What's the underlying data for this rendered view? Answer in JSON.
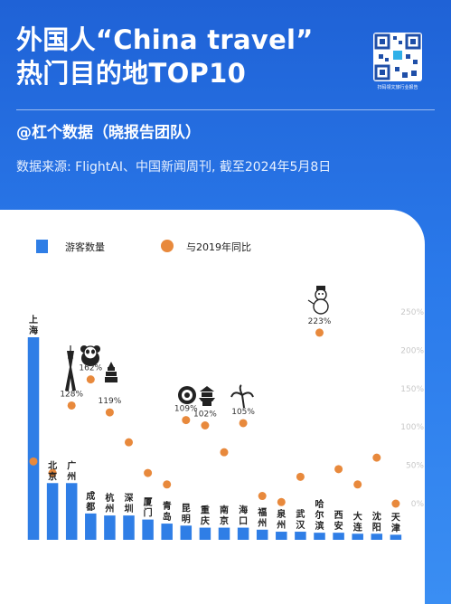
{
  "header": {
    "title_line1": "外国人“China travel”",
    "title_line2": "热门目的地TOP10",
    "author": "@杠个数据（晓报告团队）",
    "source": "数据来源: FlightAI、中国新闻周刊, 截至2024年5月8日",
    "qr_caption": "扫码领文旅行业报告"
  },
  "colors": {
    "background": "#2a79ea",
    "bar": "#2f7ee6",
    "dot": "#e8893c",
    "text": "#222222",
    "axis_text": "#c8c8c8"
  },
  "chart_data": {
    "type": "bar",
    "legend": {
      "bar_label": "游客数量",
      "dot_label": "与2019年同比",
      "placement": "top-left"
    },
    "y_right_ticks": [
      "250%",
      "200%",
      "150%",
      "100%",
      "50%",
      "0%"
    ],
    "y_right_range": [
      0,
      250
    ],
    "visitor_range": [
      0,
      100
    ],
    "categories": [
      "上海",
      "北京",
      "广州",
      "成都",
      "杭州",
      "深圳",
      "厦门",
      "青岛",
      "昆明",
      "重庆",
      "南京",
      "海口",
      "福州",
      "泉州",
      "武汉",
      "哈尔滨",
      "西安",
      "大连",
      "沈阳",
      "天津"
    ],
    "visitors": [
      100,
      28,
      28,
      13,
      12,
      12,
      10,
      8,
      7,
      6,
      6,
      6,
      5,
      4,
      4,
      3.5,
      3.5,
      3,
      3,
      2.5
    ],
    "yoy_percent": [
      55,
      40,
      128,
      162,
      119,
      80,
      40,
      25,
      109,
      102,
      67,
      105,
      10,
      2,
      35,
      223,
      45,
      25,
      60,
      0
    ],
    "labeled_points": [
      {
        "city": "广州",
        "label": "128%"
      },
      {
        "city": "成都",
        "label": "162%"
      },
      {
        "city": "杭州",
        "label": "119%"
      },
      {
        "city": "昆明",
        "label": "109%"
      },
      {
        "city": "重庆",
        "label": "102%"
      },
      {
        "city": "海口",
        "label": "105%"
      },
      {
        "city": "哈尔滨",
        "label": "223%"
      }
    ]
  },
  "icons": [
    "canton-tower-icon",
    "panda-icon",
    "pagoda-icon",
    "peony-icon",
    "hongyadong-icon",
    "palm-tree-icon",
    "snowman-icon"
  ]
}
